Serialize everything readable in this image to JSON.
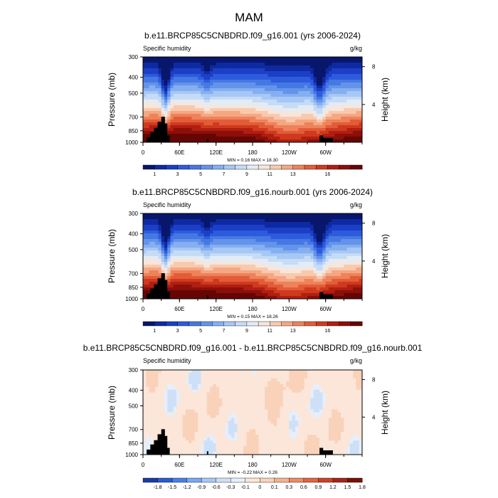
{
  "figure": {
    "title": "MAM"
  },
  "colors": {
    "p1": [
      "#08166b",
      "#0e2aa3",
      "#1b3fc6",
      "#2d5bdc",
      "#4678e4",
      "#6394ea",
      "#85aff0",
      "#a7c7f4",
      "#c6dbf6",
      "#e3ecf5",
      "#f6e6dc",
      "#f9c9ae",
      "#f5a782",
      "#ee825b",
      "#e35c38",
      "#cf3a1f",
      "#b01f12",
      "#8c0f09",
      "#650604"
    ],
    "diff": [
      "#1a3d9e",
      "#2c5bd0",
      "#4a7fe5",
      "#7aa6f0",
      "#a8c8f5",
      "#cde0f8",
      "#e6effa",
      "#fbe6d9",
      "#f9d2b9",
      "#f4b28d",
      "#ec8c64",
      "#e0653e",
      "#c9432a",
      "#a1271a",
      "#751208"
    ]
  },
  "chart_data": [
    {
      "type": "heatmap",
      "title": "b.e11.BRCP85C5CNBDRD.f09_g16.001 (yrs 2006-2024)",
      "left_label": "Specific humidity",
      "right_label": "g/kg",
      "ylabel": "Pressure (mb)",
      "ylabel_right": "Height (km)",
      "xticks": [
        "0",
        "60E",
        "120E",
        "180",
        "120W",
        "60W"
      ],
      "yticks": [
        "300",
        "400",
        "500",
        "700",
        "850",
        "1000"
      ],
      "right_ticks": [
        "8",
        "4"
      ],
      "minmax": "MIN =   0.16  MAX =  18.30",
      "levels": [
        "1",
        "3",
        "5",
        "7",
        "9",
        "11",
        "13",
        "16"
      ],
      "max": 18.3
    },
    {
      "type": "heatmap",
      "title": "b.e11.BRCP85C5CNBDRD.f09_g16.nourb.001 (yrs 2006-2024)",
      "left_label": "Specific humidity",
      "right_label": "g/kg",
      "ylabel": "Pressure (mb)",
      "ylabel_right": "Height (km)",
      "xticks": [
        "0",
        "60E",
        "120E",
        "180",
        "120W",
        "60W"
      ],
      "yticks": [
        "300",
        "400",
        "500",
        "700",
        "850",
        "1000"
      ],
      "right_ticks": [
        "8",
        "4"
      ],
      "minmax": "MIN =   0.15  MAX =  18.26",
      "levels": [
        "1",
        "3",
        "5",
        "7",
        "9",
        "11",
        "13",
        "16"
      ],
      "max": 18.26
    },
    {
      "type": "heatmap",
      "title": "b.e11.BRCP85C5CNBDRD.f09_g16.001 - b.e11.BRCP85C5CNBDRD.f09_g16.nourb.001",
      "left_label": "Specific humidity",
      "right_label": "g/kg",
      "ylabel": "Pressure (mb)",
      "ylabel_right": "Height (km)",
      "xticks": [
        "0",
        "60E",
        "120E",
        "180",
        "120W",
        "60W"
      ],
      "yticks": [
        "300",
        "400",
        "500",
        "700",
        "850",
        "1000"
      ],
      "right_ticks": [
        "8",
        "4"
      ],
      "minmax": "MIN =  -0.22  MAX =   0.26",
      "levels": [
        "-1.8",
        "-1.5",
        "-1.2",
        "-0.9",
        "-0.6",
        "-0.3",
        "-0.1",
        "0",
        "0.1",
        "0.3",
        "0.6",
        "0.9",
        "1.2",
        "1.5",
        "1.8"
      ],
      "min": -0.22,
      "max": 0.26
    }
  ]
}
